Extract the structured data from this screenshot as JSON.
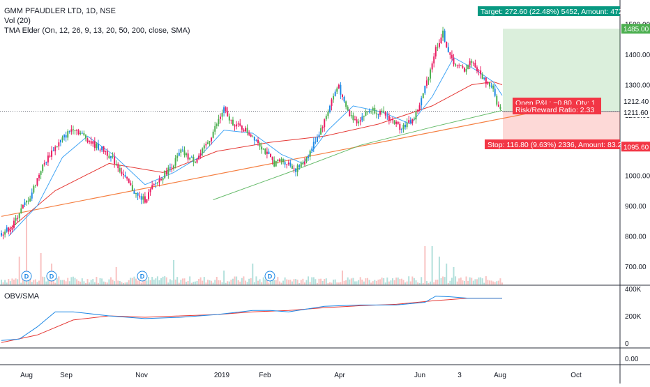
{
  "chart_data": {
    "type": "candlestick",
    "title": "GMM PFAUDLER LTD, 1D, NSE",
    "indicators": {
      "volume": "Vol (20)",
      "tma": "TMA Elder (On, 12, 26, 9, 13, 20, 50, 200, close, SMA)",
      "obv": "OBV/SMA"
    },
    "x_axis_labels": [
      "Aug",
      "Sep",
      "Nov",
      "2019",
      "Feb",
      "Apr",
      "Jun",
      "3",
      "Aug",
      "Oct"
    ],
    "price_axis": {
      "ticks": [
        700,
        800,
        900,
        1000,
        1100,
        1200,
        1300,
        1400,
        1500
      ],
      "ylim": [
        640,
        1580
      ]
    },
    "obv_axis": {
      "ticks": [
        "0",
        "200K",
        "400K"
      ],
      "ylim": [
        -30000,
        420000
      ]
    },
    "third_axis": {
      "ticks": [
        "0.00"
      ]
    },
    "price_labels": {
      "target": "1485.00",
      "current": "1212.40",
      "entry": "1211.60",
      "stop": "1095.60"
    },
    "position": {
      "target_text": "Target: 272.60 (22.48%) 5452, Amount: 472",
      "stop_text": "Stop: 116.80 (9.63%) 2336, Amount: 83.2",
      "pnl_text": "Open P&L: −0.80, Qty: 1",
      "rr_text": "Risk/Reward Ratio: 2.33",
      "target_price": 1485.0,
      "entry_price": 1211.6,
      "stop_price": 1095.6
    },
    "dividend_markers": [
      "D",
      "D",
      "D",
      "D"
    ],
    "price_path": [
      [
        0,
        810
      ],
      [
        6,
        830
      ],
      [
        10,
        880
      ],
      [
        16,
        930
      ],
      [
        22,
        1020
      ],
      [
        28,
        1080
      ],
      [
        34,
        1120
      ],
      [
        40,
        1160
      ],
      [
        46,
        1130
      ],
      [
        52,
        1100
      ],
      [
        58,
        1080
      ],
      [
        64,
        1040
      ],
      [
        70,
        980
      ],
      [
        76,
        930
      ],
      [
        80,
        920
      ],
      [
        84,
        960
      ],
      [
        90,
        1000
      ],
      [
        96,
        1040
      ],
      [
        100,
        1080
      ],
      [
        104,
        1060
      ],
      [
        108,
        1050
      ],
      [
        112,
        1080
      ],
      [
        116,
        1120
      ],
      [
        120,
        1170
      ],
      [
        124,
        1220
      ],
      [
        126,
        1190
      ],
      [
        130,
        1170
      ],
      [
        136,
        1150
      ],
      [
        142,
        1120
      ],
      [
        148,
        1070
      ],
      [
        152,
        1040
      ],
      [
        156,
        1050
      ],
      [
        160,
        1040
      ],
      [
        164,
        1020
      ],
      [
        168,
        1040
      ],
      [
        172,
        1080
      ],
      [
        176,
        1130
      ],
      [
        180,
        1180
      ],
      [
        184,
        1250
      ],
      [
        188,
        1300
      ],
      [
        190,
        1250
      ],
      [
        194,
        1200
      ],
      [
        198,
        1180
      ],
      [
        202,
        1200
      ],
      [
        206,
        1220
      ],
      [
        210,
        1210
      ],
      [
        214,
        1200
      ],
      [
        218,
        1180
      ],
      [
        222,
        1160
      ],
      [
        226,
        1170
      ],
      [
        230,
        1190
      ],
      [
        234,
        1250
      ],
      [
        238,
        1330
      ],
      [
        242,
        1420
      ],
      [
        246,
        1470
      ],
      [
        250,
        1390
      ],
      [
        254,
        1360
      ],
      [
        258,
        1350
      ],
      [
        262,
        1380
      ],
      [
        266,
        1340
      ],
      [
        270,
        1310
      ],
      [
        274,
        1290
      ],
      [
        276,
        1230
      ],
      [
        278,
        1212
      ]
    ],
    "ma_fast_path": [
      [
        4,
        800
      ],
      [
        20,
        900
      ],
      [
        34,
        1060
      ],
      [
        48,
        1130
      ],
      [
        62,
        1070
      ],
      [
        80,
        970
      ],
      [
        96,
        1010
      ],
      [
        110,
        1060
      ],
      [
        124,
        1150
      ],
      [
        140,
        1140
      ],
      [
        156,
        1070
      ],
      [
        168,
        1040
      ],
      [
        182,
        1150
      ],
      [
        196,
        1230
      ],
      [
        212,
        1210
      ],
      [
        228,
        1170
      ],
      [
        240,
        1260
      ],
      [
        252,
        1390
      ],
      [
        264,
        1350
      ],
      [
        274,
        1310
      ],
      [
        279,
        1265
      ]
    ],
    "ma_mid_path": [
      [
        4,
        820
      ],
      [
        30,
        950
      ],
      [
        60,
        1040
      ],
      [
        90,
        1010
      ],
      [
        120,
        1080
      ],
      [
        150,
        1110
      ],
      [
        180,
        1130
      ],
      [
        210,
        1170
      ],
      [
        240,
        1230
      ],
      [
        262,
        1300
      ],
      [
        274,
        1310
      ],
      [
        279,
        1300
      ]
    ],
    "ma_long_path": [
      [
        118,
        920
      ],
      [
        160,
        1010
      ],
      [
        200,
        1100
      ],
      [
        240,
        1160
      ],
      [
        279,
        1215
      ]
    ],
    "trendline": [
      [
        0,
        865
      ],
      [
        332,
        1250
      ]
    ],
    "obv_path": [
      [
        0,
        20000
      ],
      [
        10,
        30000
      ],
      [
        20,
        120000
      ],
      [
        30,
        230000
      ],
      [
        40,
        230000
      ],
      [
        60,
        200000
      ],
      [
        80,
        180000
      ],
      [
        100,
        190000
      ],
      [
        120,
        210000
      ],
      [
        140,
        240000
      ],
      [
        150,
        240000
      ],
      [
        160,
        230000
      ],
      [
        180,
        270000
      ],
      [
        200,
        280000
      ],
      [
        220,
        280000
      ],
      [
        236,
        300000
      ],
      [
        242,
        345000
      ],
      [
        250,
        340000
      ],
      [
        260,
        330000
      ],
      [
        270,
        330000
      ],
      [
        279,
        330000
      ]
    ],
    "obv_sma_path": [
      [
        0,
        5000
      ],
      [
        20,
        60000
      ],
      [
        40,
        170000
      ],
      [
        60,
        200000
      ],
      [
        80,
        190000
      ],
      [
        100,
        200000
      ],
      [
        120,
        210000
      ],
      [
        140,
        230000
      ],
      [
        160,
        240000
      ],
      [
        180,
        260000
      ],
      [
        200,
        275000
      ],
      [
        220,
        285000
      ],
      [
        240,
        310000
      ],
      [
        260,
        330000
      ],
      [
        279,
        330000
      ]
    ],
    "grid": false
  }
}
